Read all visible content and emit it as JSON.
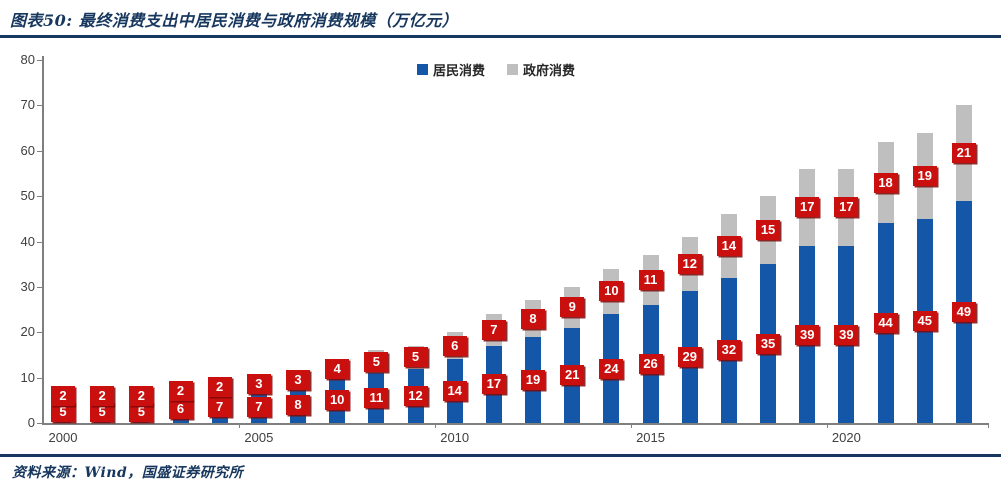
{
  "header": {
    "title": "图表50:  最终消费支出中居民消费与政府消费规模（万亿元）"
  },
  "footer": {
    "source": "资料来源：Wind，国盛证券研究所"
  },
  "colors": {
    "accent_navy": "#17375E",
    "resident_blue": "#1457A8",
    "government_gray": "#BFBFBF",
    "label_red": "#C9100E",
    "axis_gray": "#7F7F7F"
  },
  "chart_data": {
    "type": "bar",
    "stacked": true,
    "title": "最终消费支出中居民消费与政府消费规模（万亿元）",
    "categories": [
      "2000",
      "2001",
      "2002",
      "2003",
      "2004",
      "2005",
      "2006",
      "2007",
      "2008",
      "2009",
      "2010",
      "2011",
      "2012",
      "2013",
      "2014",
      "2015",
      "2016",
      "2017",
      "2018",
      "2019",
      "2020",
      "2021",
      "2022",
      "2023"
    ],
    "series": [
      {
        "name": "居民消费",
        "color": "#1457A8",
        "values": [
          5,
          5,
          5,
          6,
          7,
          7,
          8,
          10,
          11,
          12,
          14,
          17,
          19,
          21,
          24,
          26,
          29,
          32,
          35,
          39,
          39,
          44,
          45,
          49
        ]
      },
      {
        "name": "政府消费",
        "color": "#BFBFBF",
        "values": [
          2,
          2,
          2,
          2,
          2,
          3,
          3,
          4,
          5,
          5,
          6,
          7,
          8,
          9,
          10,
          11,
          12,
          14,
          15,
          17,
          17,
          18,
          19,
          21
        ]
      }
    ],
    "ylim": [
      0,
      80
    ],
    "yticks": [
      0,
      10,
      20,
      30,
      40,
      50,
      60,
      70,
      80
    ],
    "xticks": [
      "2000",
      "2005",
      "2010",
      "2015",
      "2020"
    ],
    "grid": false,
    "legend_position": "top-center",
    "data_labels": "all-segments, red boxes with white bold text"
  }
}
